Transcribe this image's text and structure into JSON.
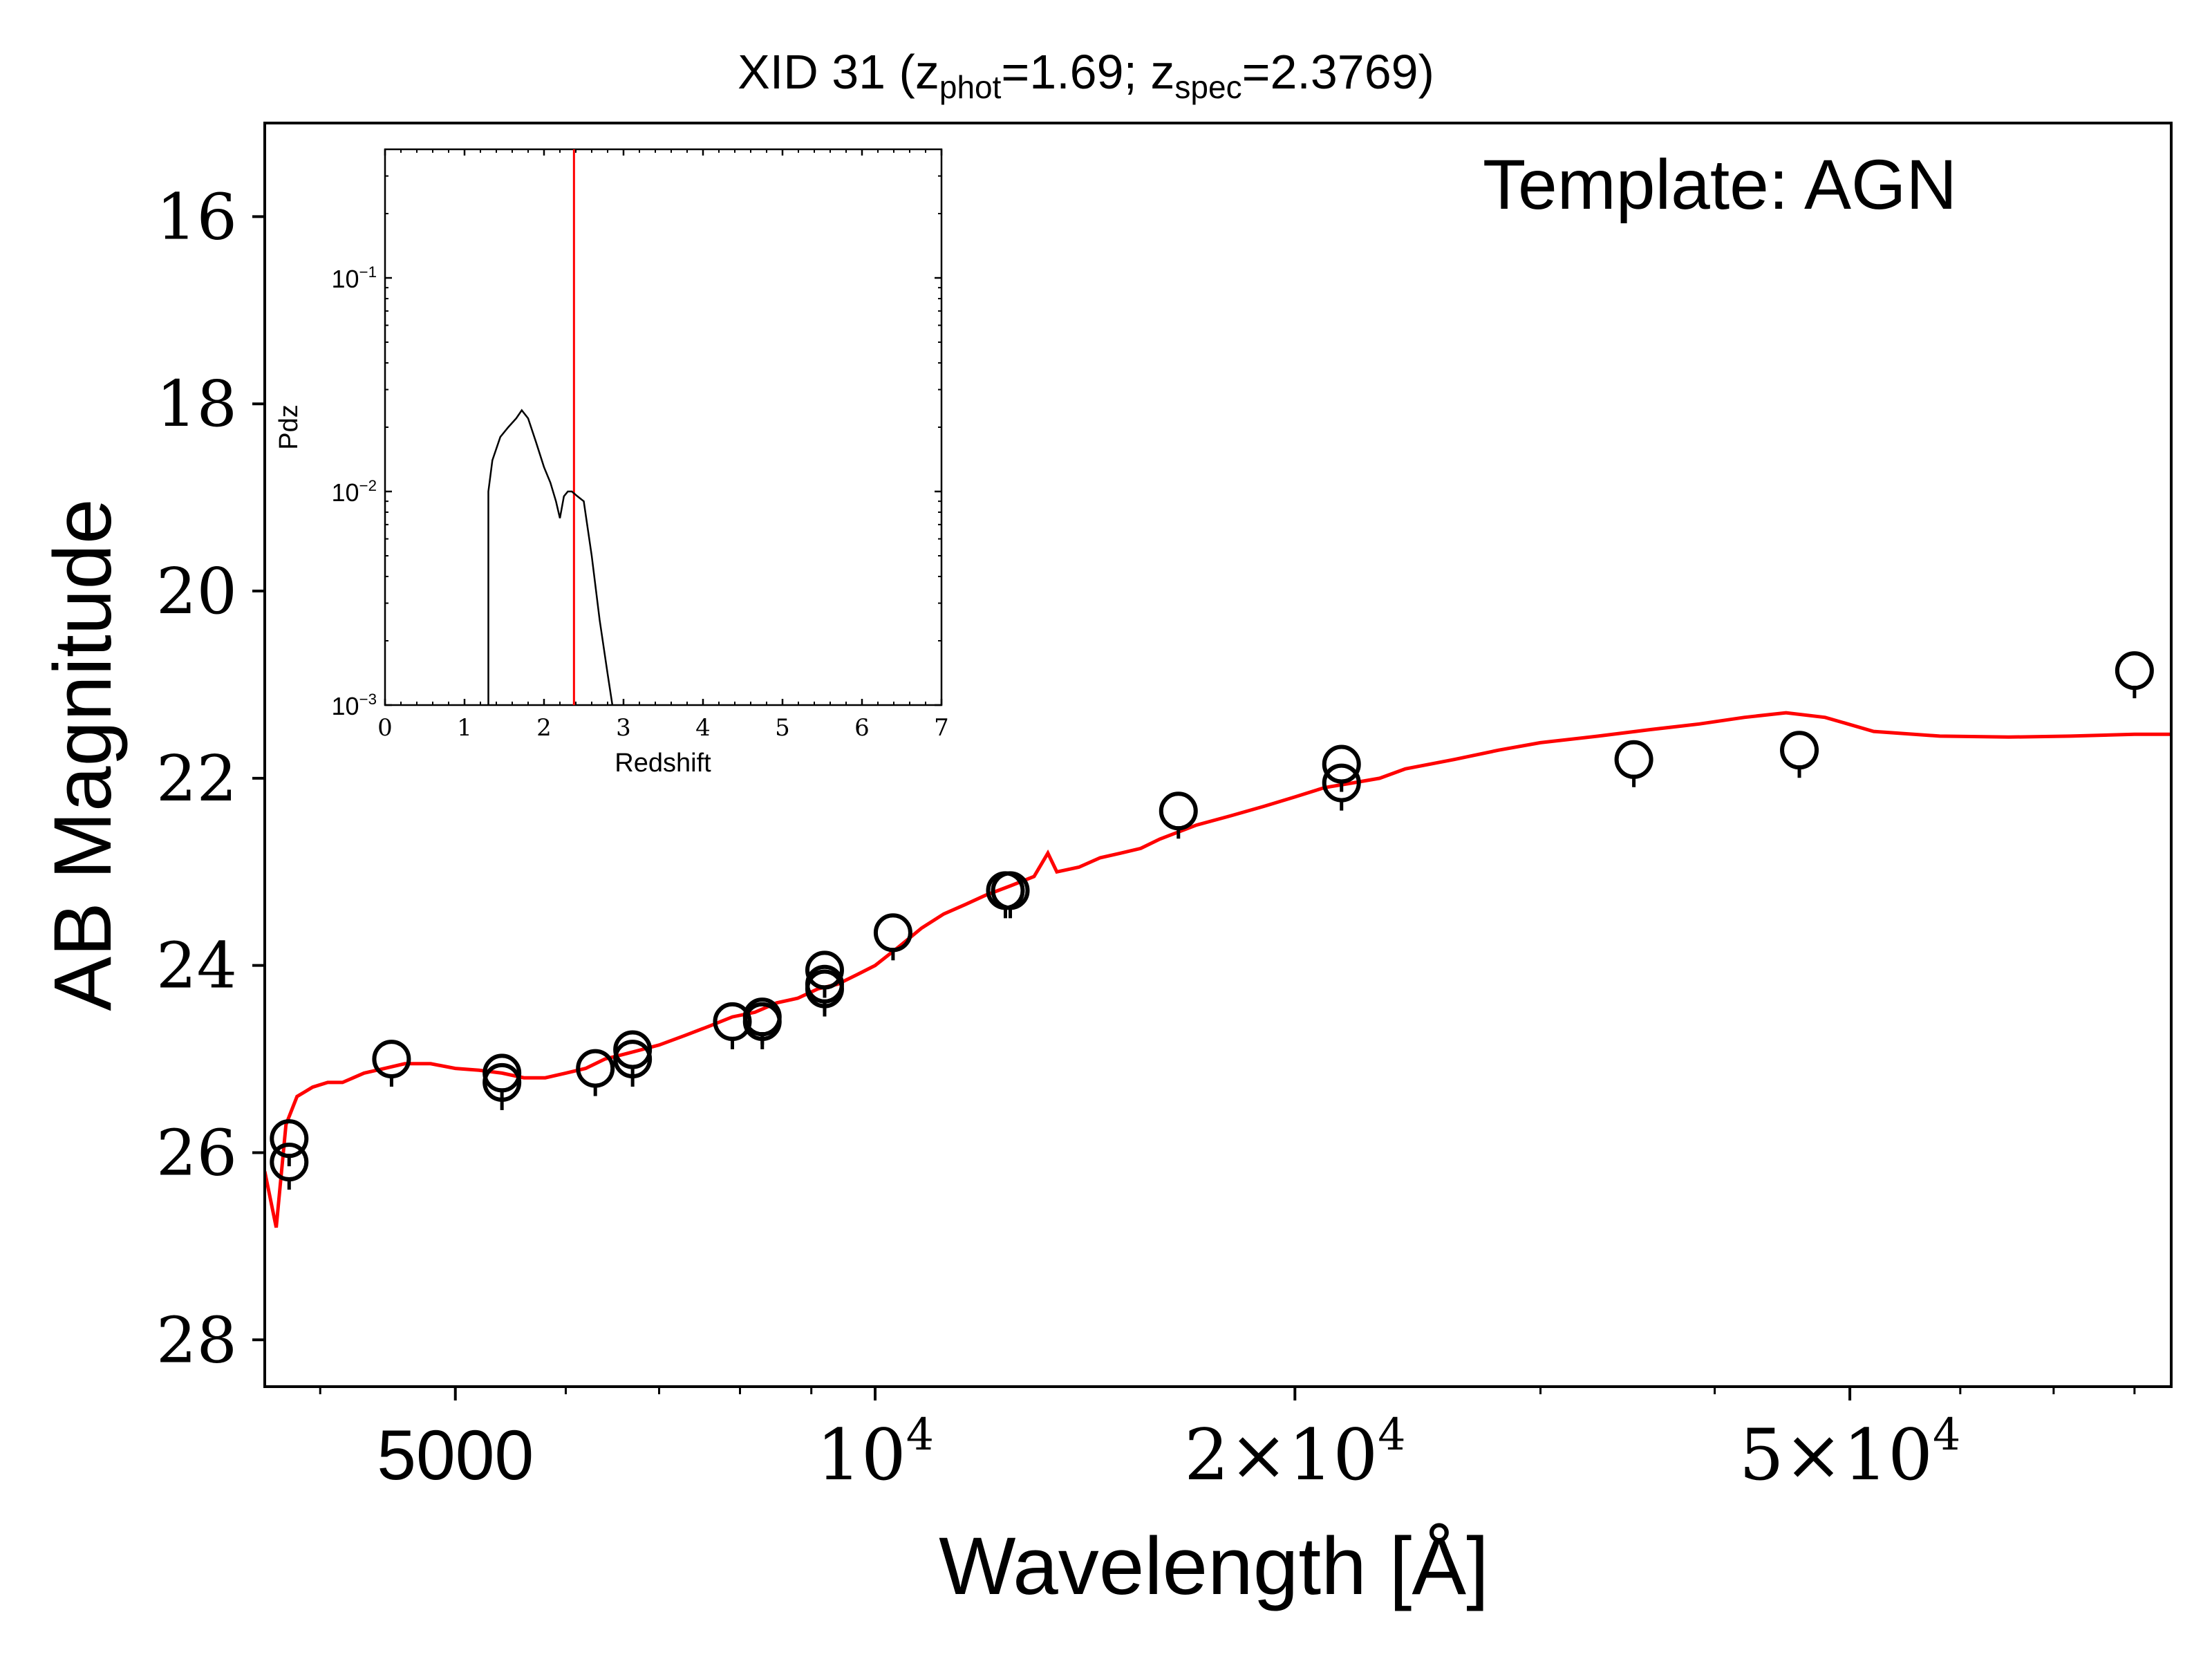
{
  "chart_data": [
    {
      "type": "scatter",
      "title_main": "XID 31 (z",
      "title_sub_phot": "phot",
      "title_mid": "=1.69; z",
      "title_sub_spec": "spec",
      "title_end": "=2.3769)",
      "annotation": "Template: AGN",
      "xlabel": "Wavelength [Å]",
      "ylabel": "AB Magnitude",
      "xscale": "log",
      "xlim": [
        3650,
        85000
      ],
      "ylim": [
        28.5,
        15.0
      ],
      "y_inverted": true,
      "ytick_labels": [
        "16",
        "18",
        "20",
        "22",
        "24",
        "26",
        "28"
      ],
      "ytick_values": [
        16,
        18,
        20,
        22,
        24,
        26,
        28
      ],
      "xtick_labels": [
        {
          "base": "5000",
          "exp": "",
          "value": 5000
        },
        {
          "base": "10",
          "exp": "4",
          "value": 10000
        },
        {
          "base": "2×10",
          "exp": "4",
          "value": 20000
        },
        {
          "base": "5×10",
          "exp": "4",
          "value": 50000
        }
      ],
      "minor_xticks": [
        4000,
        6000,
        7000,
        8000,
        9000,
        30000,
        40000,
        60000,
        70000,
        80000
      ],
      "series": [
        {
          "kind": "model",
          "color": "#ff0000",
          "x": [
            3650,
            3720,
            3780,
            3850,
            3900,
            3950,
            4050,
            4150,
            4300,
            4450,
            4600,
            4800,
            5000,
            5200,
            5400,
            5600,
            5800,
            6000,
            6200,
            6400,
            6600,
            6800,
            7000,
            7300,
            7600,
            7900,
            8200,
            8500,
            8800,
            9100,
            9400,
            9700,
            10000,
            10400,
            10800,
            11200,
            11600,
            12000,
            12500,
            13000,
            13300,
            13500,
            14000,
            14500,
            15000,
            15500,
            16000,
            17000,
            18000,
            19000,
            20000,
            21000,
            22000,
            23000,
            24000,
            26000,
            28000,
            30000,
            33000,
            36000,
            39000,
            42000,
            45000,
            48000,
            52000,
            58000,
            65000,
            72000,
            80000,
            85000
          ],
          "y": [
            26.2,
            26.8,
            25.7,
            25.4,
            25.35,
            25.3,
            25.25,
            25.25,
            25.15,
            25.1,
            25.05,
            25.05,
            25.1,
            25.12,
            25.15,
            25.2,
            25.2,
            25.15,
            25.1,
            25.0,
            24.95,
            24.9,
            24.85,
            24.75,
            24.65,
            24.55,
            24.5,
            24.4,
            24.35,
            24.25,
            24.2,
            24.1,
            24.0,
            23.8,
            23.6,
            23.45,
            23.35,
            23.25,
            23.15,
            23.05,
            22.8,
            23.0,
            22.95,
            22.85,
            22.8,
            22.75,
            22.65,
            22.5,
            22.4,
            22.3,
            22.2,
            22.1,
            22.05,
            22.0,
            21.9,
            21.8,
            21.7,
            21.62,
            21.55,
            21.48,
            21.42,
            21.35,
            21.3,
            21.35,
            21.5,
            21.55,
            21.56,
            21.55,
            21.53,
            21.53
          ]
        },
        {
          "kind": "observed",
          "color": "#000000",
          "x": [
            3800,
            3800,
            4500,
            5400,
            5400,
            6300,
            6700,
            6700,
            7900,
            8300,
            8300,
            9200,
            9200,
            9200,
            10300,
            12400,
            12500,
            16500,
            21600,
            21600,
            35000,
            46000,
            80000
          ],
          "y": [
            25.85,
            26.1,
            25.0,
            25.15,
            25.25,
            25.1,
            24.9,
            25.0,
            24.6,
            24.55,
            24.6,
            24.05,
            24.2,
            24.25,
            23.65,
            23.2,
            23.2,
            22.35,
            21.85,
            22.05,
            21.8,
            21.7,
            20.85
          ]
        }
      ]
    },
    {
      "type": "line",
      "xlabel": "Redshift",
      "ylabel": "Pdz",
      "xlim": [
        0,
        7
      ],
      "ylim": [
        0.001,
        0.4
      ],
      "yscale": "log",
      "xtick_labels": [
        "0",
        "1",
        "2",
        "3",
        "4",
        "5",
        "6",
        "7"
      ],
      "ytick_labels": [
        {
          "base": "10",
          "exp": "−1",
          "value": 0.1
        },
        {
          "base": "10",
          "exp": "−2",
          "value": 0.01
        },
        {
          "base": "10",
          "exp": "−3",
          "value": 0.001
        }
      ],
      "spec_z": 2.3769,
      "spec_z_color": "#ff0000",
      "series": [
        {
          "kind": "pdz",
          "color": "#000000",
          "x": [
            1.3,
            1.3,
            1.35,
            1.45,
            1.55,
            1.65,
            1.72,
            1.8,
            1.9,
            2.0,
            2.08,
            2.15,
            2.2,
            2.25,
            2.3,
            2.35,
            2.42,
            2.5,
            2.6,
            2.7,
            2.8,
            2.86
          ],
          "y": [
            0.001,
            0.01,
            0.014,
            0.018,
            0.02,
            0.022,
            0.024,
            0.022,
            0.017,
            0.013,
            0.011,
            0.009,
            0.0075,
            0.0095,
            0.01,
            0.01,
            0.0095,
            0.009,
            0.005,
            0.0025,
            0.0014,
            0.001
          ]
        }
      ]
    }
  ]
}
